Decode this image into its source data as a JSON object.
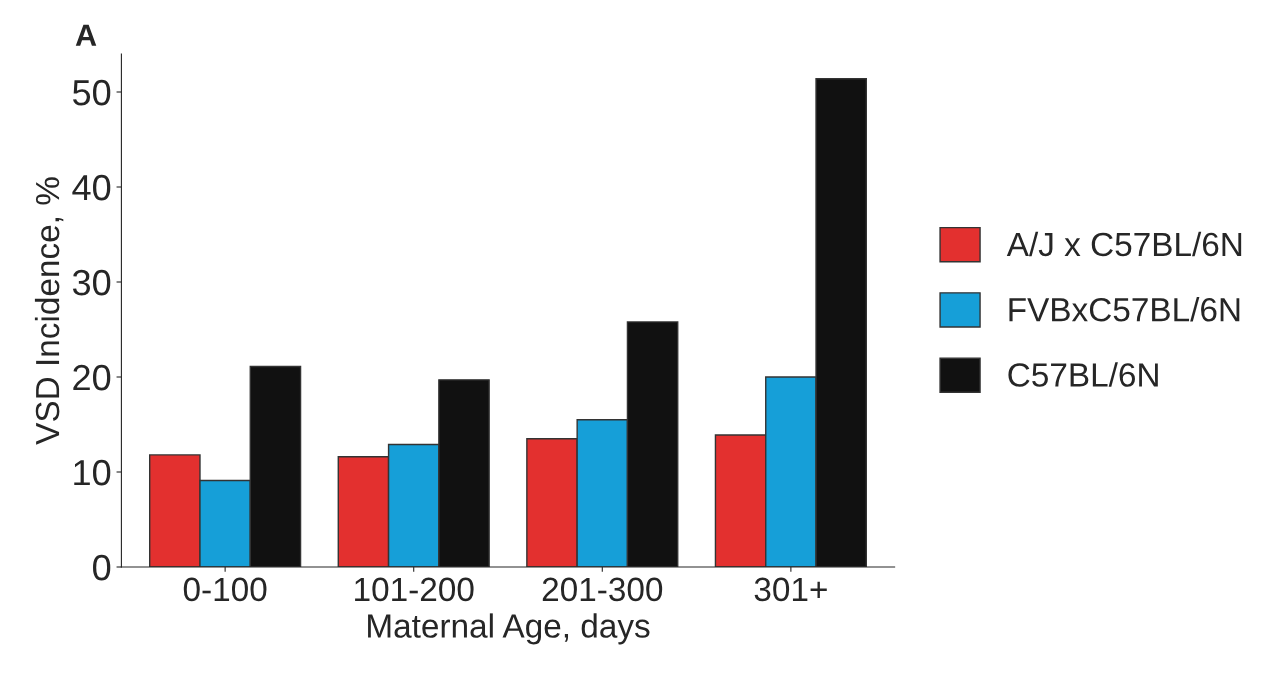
{
  "chart_data": {
    "type": "bar",
    "title": "A",
    "xlabel": "Maternal Age, days",
    "ylabel": "VSD Incidence, %",
    "categories": [
      "0-100",
      "101-200",
      "201-300",
      "301+"
    ],
    "series": [
      {
        "name": "A/J x C57BL/6N",
        "color": "#e3302f",
        "values": [
          11.8,
          11.6,
          13.5,
          13.9
        ]
      },
      {
        "name": "FVBxC57BL/6N",
        "color": "#169fd8",
        "values": [
          9.1,
          12.9,
          15.5,
          20.0
        ]
      },
      {
        "name": "C57BL/6N",
        "color": "#111111",
        "values": [
          21.1,
          19.7,
          25.8,
          51.4
        ]
      }
    ],
    "ylim": [
      0,
      54
    ],
    "yticks": [
      0,
      10,
      20,
      30,
      40,
      50
    ],
    "grid": false,
    "legend": "right"
  }
}
